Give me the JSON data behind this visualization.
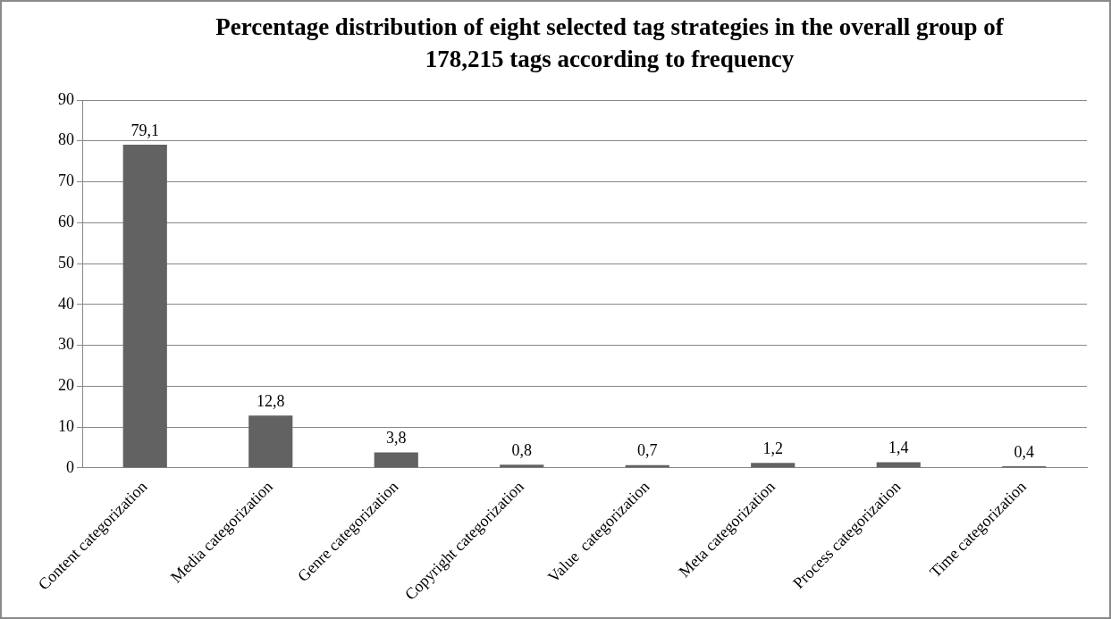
{
  "chart_data": {
    "type": "bar",
    "title": "Percentage distribution of eight selected tag strategies in the overall group of 178,215 tags according to frequency",
    "categories": [
      "Content categorization",
      "Media categorization",
      "Genre categorization",
      "Copyright categorization",
      "Value  categorization",
      "Meta categorization",
      "Process categorization",
      "Time categorization"
    ],
    "values": [
      79.1,
      12.8,
      3.8,
      0.8,
      0.7,
      1.2,
      1.4,
      0.4
    ],
    "value_labels": [
      "79,1",
      "12,8",
      "3,8",
      "0,8",
      "0,7",
      "1,2",
      "1,4",
      "0,4"
    ],
    "color": "#626262",
    "ylim": [
      0,
      90
    ],
    "yticks": [
      0,
      10,
      20,
      30,
      40,
      50,
      60,
      70,
      80,
      90
    ],
    "grid": "y",
    "legend": false
  }
}
